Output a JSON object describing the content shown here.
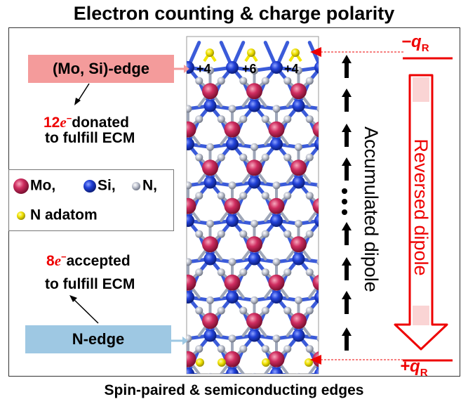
{
  "title": "Electron counting & charge polarity",
  "footer": "Spin-paired & semiconducting edges",
  "top_edge": {
    "label": "(Mo, Si)-edge",
    "count": "12",
    "electron_symbol": "e",
    "electron_sup": "−",
    "action": "donated",
    "goal": "to fulfill ECM",
    "charges": [
      "+4",
      "+6",
      "+4"
    ]
  },
  "bottom_edge": {
    "label": "N-edge",
    "count": "8",
    "electron_symbol": "e",
    "electron_sup": "−",
    "action": "accepted",
    "goal": "to fulfill ECM"
  },
  "legend": {
    "mo": "Mo,",
    "si": "Si,",
    "n": "N,",
    "adatom": "N adatom"
  },
  "dipole_label": "Accumulated dipole",
  "reversed_label": "Reversed dipole",
  "q_top": {
    "sign": "−",
    "q": "q",
    "sub": "R"
  },
  "q_bottom": {
    "sign": "+",
    "q": "q",
    "sub": "R"
  },
  "colors": {
    "mo": "#c8285a",
    "si": "#1f3fd6",
    "n": "#b8bcc8",
    "adatom": "#f2e600",
    "bond_blue": "#3b5bd9",
    "bond_grey": "#9ea6b8",
    "red": "#ee0000",
    "top_box": "#f49b9b",
    "bottom_box": "#9ec8e3"
  }
}
